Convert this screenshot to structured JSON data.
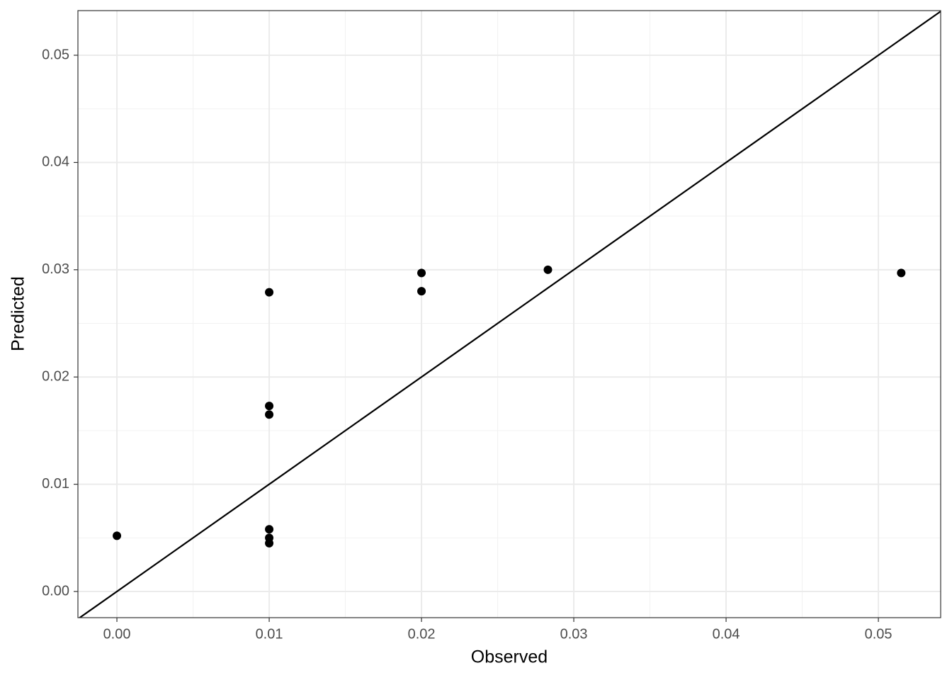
{
  "chart_data": {
    "type": "scatter",
    "x_label": "Observed",
    "y_label": "Predicted",
    "series": [
      {
        "color": "#000000",
        "x": [
          0.0,
          0.01,
          0.01,
          0.01,
          0.01,
          0.01,
          0.01,
          0.02,
          0.02,
          0.0283,
          0.0515
        ],
        "values": [
          0.0052,
          0.0279,
          0.0173,
          0.0165,
          0.0058,
          0.005,
          0.0045,
          0.0297,
          0.028,
          0.03,
          0.0297
        ]
      }
    ],
    "xlim": [
      -0.00256,
      0.05409
    ],
    "ylim": [
      -0.00244,
      0.05416
    ],
    "xticks": [
      {
        "value": 0,
        "label": "0.00"
      },
      0.01,
      0.02,
      0.03,
      0.04,
      0.05
    ],
    "yticks": [
      {
        "value": 0,
        "label": "0.00"
      },
      0.01,
      0.02,
      0.03,
      0.04,
      0.05
    ],
    "grid": true,
    "minor_grid": true,
    "identity_line": true
  }
}
